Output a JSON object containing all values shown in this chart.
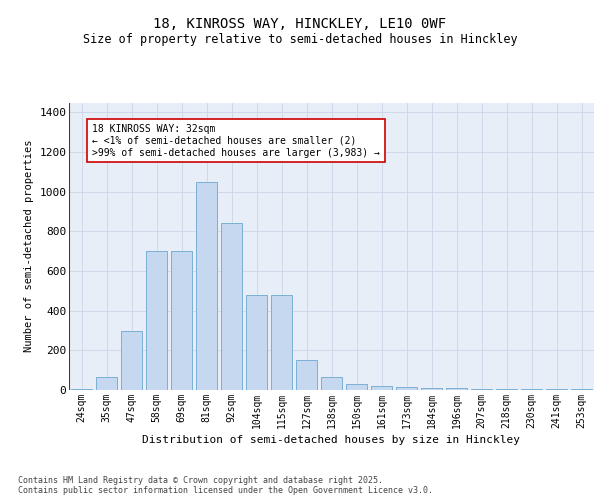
{
  "title_line1": "18, KINROSS WAY, HINCKLEY, LE10 0WF",
  "title_line2": "Size of property relative to semi-detached houses in Hinckley",
  "xlabel": "Distribution of semi-detached houses by size in Hinckley",
  "ylabel": "Number of semi-detached properties",
  "categories": [
    "24sqm",
    "35sqm",
    "47sqm",
    "58sqm",
    "69sqm",
    "81sqm",
    "92sqm",
    "104sqm",
    "115sqm",
    "127sqm",
    "138sqm",
    "150sqm",
    "161sqm",
    "173sqm",
    "184sqm",
    "196sqm",
    "207sqm",
    "218sqm",
    "230sqm",
    "241sqm",
    "253sqm"
  ],
  "values": [
    5,
    65,
    300,
    700,
    700,
    1050,
    840,
    480,
    480,
    150,
    65,
    30,
    20,
    15,
    12,
    10,
    7,
    5,
    5,
    3,
    3
  ],
  "bar_color": "#c5d8f0",
  "bar_edge_color": "#7aafd4",
  "highlight_bar_index": 0,
  "highlight_bar_edge_color": "#cc0000",
  "annotation_box_text": "18 KINROSS WAY: 32sqm\n← <1% of semi-detached houses are smaller (2)\n>99% of semi-detached houses are larger (3,983) →",
  "footnote": "Contains HM Land Registry data © Crown copyright and database right 2025.\nContains public sector information licensed under the Open Government Licence v3.0.",
  "ylim": [
    0,
    1450
  ],
  "yticks": [
    0,
    200,
    400,
    600,
    800,
    1000,
    1200,
    1400
  ],
  "grid_color": "#ccd6e8",
  "background_color": "#e8eef8"
}
